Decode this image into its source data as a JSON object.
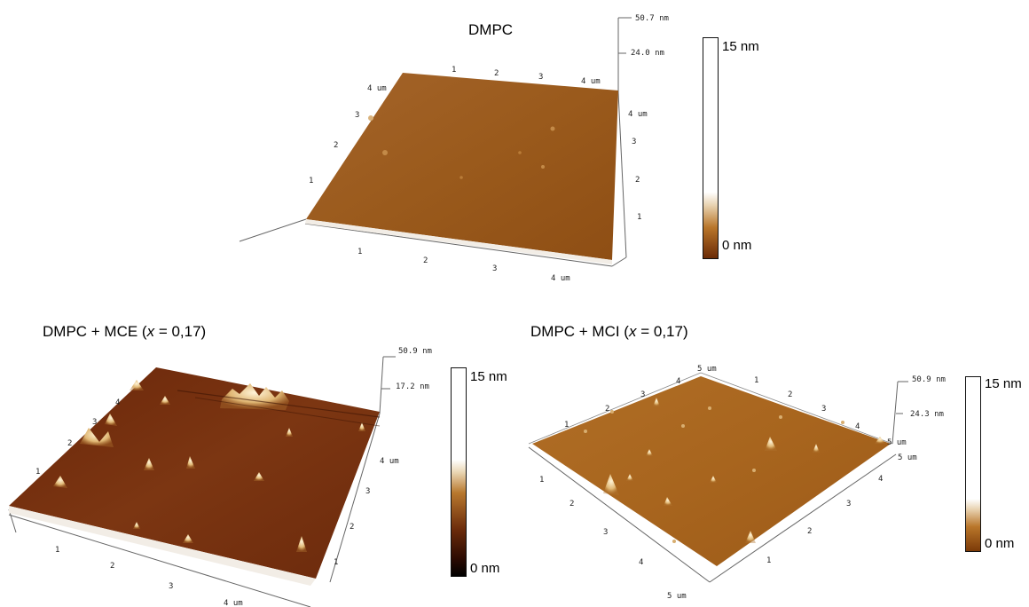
{
  "panels": [
    {
      "title": "DMPC",
      "scale": {
        "top_label": "15 nm",
        "bottom_label": "0 nm"
      },
      "z_axis": {
        "top": "50.7 nm",
        "mid": "24.0 nm"
      },
      "axis_labels": {
        "back_x": [
          "1",
          "2",
          "3",
          "4 um"
        ],
        "left_y": [
          "4 um",
          "3",
          "2",
          "1"
        ],
        "right_y": [
          "4 um",
          "3",
          "2",
          "1"
        ],
        "front_x": [
          "1",
          "2",
          "3",
          "4 um"
        ]
      },
      "colors": {
        "surface": "#9a5a1c",
        "scale_top": "#ffffff",
        "scale_bottom": "#6b2b06"
      }
    },
    {
      "title_prefix": "DMPC + MCE (",
      "title_var": "x",
      "title_suffix": " = 0,17)",
      "scale": {
        "top_label": "15 nm",
        "bottom_label": "0 nm"
      },
      "z_axis": {
        "top": "50.9 nm",
        "mid": "17.2 nm"
      },
      "axis_labels": {
        "left_y": [
          "4",
          "3",
          "2",
          "1"
        ],
        "right_y": [
          "4 um",
          "3",
          "2",
          "1"
        ],
        "front_x": [
          "1",
          "2",
          "3",
          "4 um"
        ]
      },
      "colors": {
        "surface": "#7a3210",
        "scale_top": "#ffffff",
        "scale_bottom": "#000000"
      }
    },
    {
      "title_prefix": "DMPC + MCI (",
      "title_var": "x",
      "title_suffix": " = 0,17)",
      "scale": {
        "top_label": "15 nm",
        "bottom_label": "0 nm"
      },
      "z_axis": {
        "top": "50.9 nm",
        "mid": "24.3 nm"
      },
      "axis_labels": {
        "back_left": [
          "5 um",
          "4",
          "3",
          "2",
          "1"
        ],
        "back_right": [
          "1",
          "2",
          "3",
          "4",
          "5 um"
        ],
        "front_left": [
          "1",
          "2",
          "3",
          "4",
          "5 um"
        ],
        "front_right": [
          "1",
          "2",
          "3",
          "4",
          "5 um"
        ]
      },
      "colors": {
        "surface": "#a8651e",
        "scale_top": "#ffffff",
        "scale_bottom": "#7b3a08"
      }
    }
  ]
}
